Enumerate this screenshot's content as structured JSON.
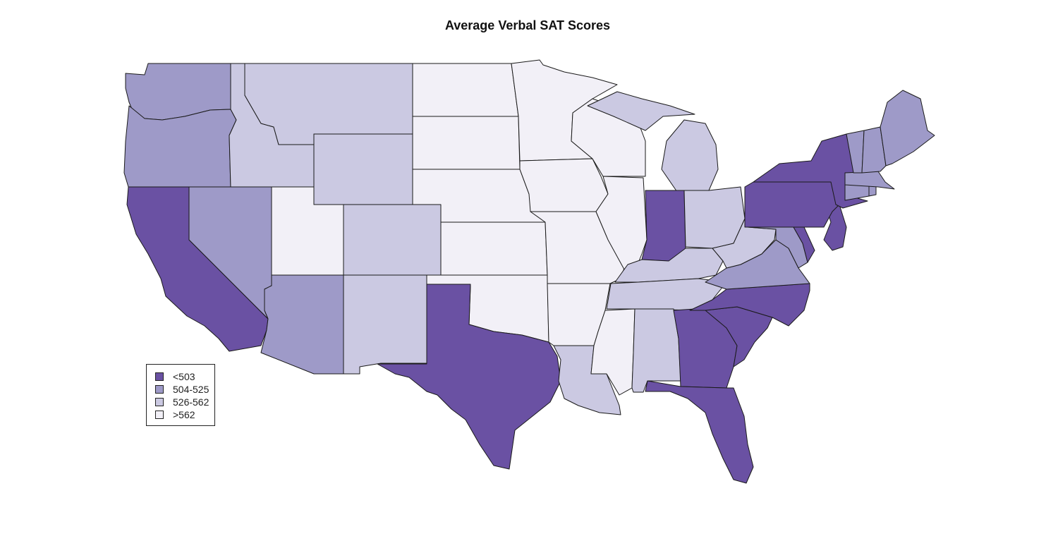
{
  "title": "Average Verbal SAT Scores",
  "colors": {
    "bin1": "#6a51a3",
    "bin2": "#9e9ac8",
    "bin3": "#cbc9e2",
    "bin4": "#f2f0f7",
    "border": "#1a1a1a"
  },
  "legend": [
    {
      "label": "<503",
      "bin": "bin1"
    },
    {
      "label": "504-525",
      "bin": "bin2"
    },
    {
      "label": "526-562",
      "bin": "bin3"
    },
    {
      "label": ">562",
      "bin": "bin4"
    }
  ],
  "chart_data": {
    "type": "choropleth",
    "title": "Average Verbal SAT Scores",
    "bins": [
      "<503",
      "504-525",
      "526-562",
      ">562"
    ],
    "states": {
      "Washington": "504-525",
      "Oregon": "504-525",
      "California": "<503",
      "Idaho": "526-562",
      "Nevada": "504-525",
      "Utah": ">562",
      "Arizona": "504-525",
      "Montana": "526-562",
      "Wyoming": "526-562",
      "Colorado": "526-562",
      "New Mexico": "526-562",
      "North Dakota": ">562",
      "South Dakota": ">562",
      "Nebraska": ">562",
      "Kansas": ">562",
      "Oklahoma": ">562",
      "Texas": "<503",
      "Minnesota": ">562",
      "Iowa": ">562",
      "Missouri": ">562",
      "Arkansas": ">562",
      "Louisiana": "526-562",
      "Wisconsin": ">562",
      "Illinois": ">562",
      "Michigan": "526-562",
      "Indiana": "<503",
      "Ohio": "526-562",
      "Kentucky": "526-562",
      "Tennessee": "526-562",
      "Mississippi": ">562",
      "Alabama": "526-562",
      "Georgia": "<503",
      "Florida": "<503",
      "South Carolina": "<503",
      "North Carolina": "<503",
      "Virginia": "504-525",
      "West Virginia": "526-562",
      "Maryland": "504-525",
      "Delaware": "<503",
      "New Jersey": "<503",
      "Pennsylvania": "<503",
      "New York": "<503",
      "Connecticut": "504-525",
      "Rhode Island": "504-525",
      "Massachusetts": "504-525",
      "Vermont": "504-525",
      "New Hampshire": "504-525",
      "Maine": "504-525"
    }
  }
}
